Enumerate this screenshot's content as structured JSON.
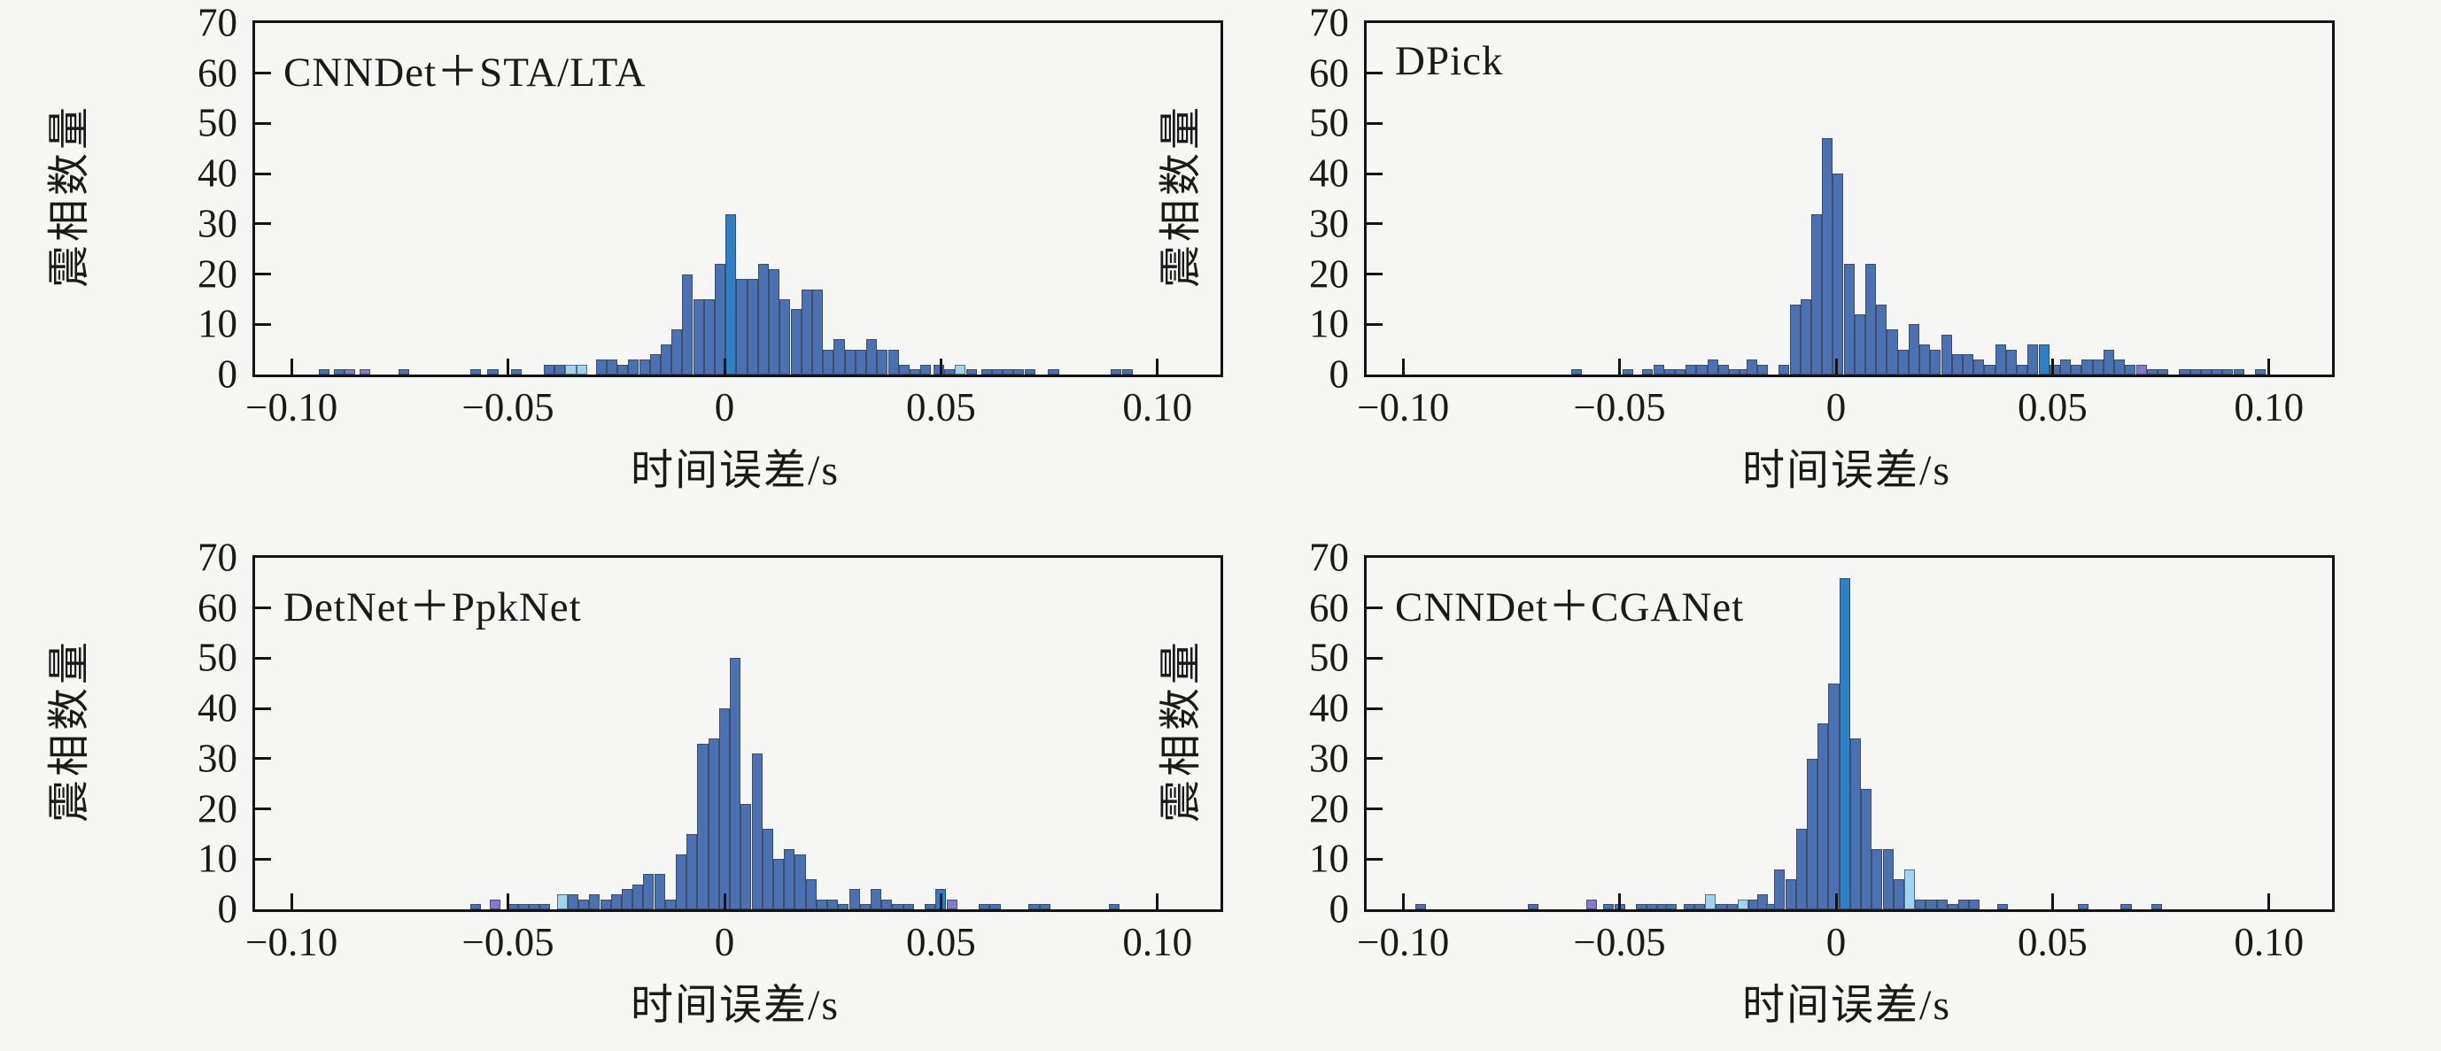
{
  "figure": {
    "background": "#f6f6f4",
    "layout": "2x2 histogram grid",
    "panel_titles": [
      "CNNDet＋STA/LTA",
      "DPick",
      "DetNet＋PpkNet",
      "CNNDet＋CGANet"
    ]
  },
  "style": {
    "bar_color": "#4a72b2",
    "bar_edge_color": "#343842",
    "axis_color": "#141414",
    "text_color": "#1a1a1a",
    "background": "#f6f6f4",
    "palette": {
      "blue": "#4a72b2",
      "bright_blue": "#2f7fc6",
      "light_blue": "#9fd4ee",
      "purple": "#8379cf",
      "green": "#4f9e5f",
      "gray": "#707070"
    }
  },
  "chart_data": [
    {
      "type": "bar",
      "subtype": "histogram",
      "title": "CNNDet＋STA/LTA",
      "xlabel": "时间误差/s",
      "ylabel": "震相数量",
      "xlim": [
        -0.1085,
        0.1145
      ],
      "ylim": [
        0,
        70
      ],
      "xticks": [
        -0.1,
        -0.05,
        0,
        0.05,
        0.1
      ],
      "xtick_labels": [
        "−0.10",
        "−0.05",
        "0",
        "0.05",
        "0.10"
      ],
      "yticks": [
        0,
        10,
        20,
        30,
        40,
        50,
        60,
        70
      ],
      "ytick_labels": [
        "0",
        "10",
        "20",
        "30",
        "40",
        "50",
        "60",
        "70"
      ],
      "grid": false,
      "legend": "none",
      "bin_width": 0.0025,
      "bins": [
        [
          -0.0925,
          1
        ],
        [
          -0.089,
          1
        ],
        [
          -0.0865,
          1,
          "purple"
        ],
        [
          -0.083,
          1,
          "purple"
        ],
        [
          -0.074,
          1
        ],
        [
          -0.0575,
          1
        ],
        [
          -0.0535,
          1
        ],
        [
          -0.048,
          1
        ],
        [
          -0.0405,
          2
        ],
        [
          -0.038,
          2
        ],
        [
          -0.0355,
          2,
          "light_blue"
        ],
        [
          -0.033,
          2,
          "light_blue"
        ],
        [
          -0.0285,
          3
        ],
        [
          -0.026,
          3
        ],
        [
          -0.0235,
          2
        ],
        [
          -0.021,
          3
        ],
        [
          -0.0185,
          3
        ],
        [
          -0.016,
          4
        ],
        [
          -0.0135,
          6
        ],
        [
          -0.011,
          9
        ],
        [
          -0.0085,
          20
        ],
        [
          -0.006,
          15
        ],
        [
          -0.0035,
          15
        ],
        [
          -0.001,
          22
        ],
        [
          0.0015,
          32,
          "bright_blue"
        ],
        [
          0.004,
          19
        ],
        [
          0.0065,
          19
        ],
        [
          0.009,
          22
        ],
        [
          0.0115,
          21
        ],
        [
          0.014,
          15
        ],
        [
          0.0165,
          13
        ],
        [
          0.019,
          17
        ],
        [
          0.0215,
          17
        ],
        [
          0.024,
          5
        ],
        [
          0.0265,
          7
        ],
        [
          0.029,
          5
        ],
        [
          0.0315,
          5
        ],
        [
          0.034,
          7
        ],
        [
          0.0365,
          5
        ],
        [
          0.039,
          5
        ],
        [
          0.0415,
          2
        ],
        [
          0.044,
          1
        ],
        [
          0.0465,
          2
        ],
        [
          0.0495,
          2
        ],
        [
          0.052,
          1
        ],
        [
          0.0545,
          2,
          "light_blue"
        ],
        [
          0.057,
          1
        ],
        [
          0.0605,
          1
        ],
        [
          0.063,
          1
        ],
        [
          0.0655,
          1
        ],
        [
          0.068,
          1
        ],
        [
          0.0705,
          1
        ],
        [
          0.076,
          1
        ],
        [
          0.0905,
          1
        ],
        [
          0.093,
          1
        ]
      ]
    },
    {
      "type": "bar",
      "subtype": "histogram",
      "title": "DPick",
      "xlabel": "时间误差/s",
      "ylabel": "震相数量",
      "xlim": [
        -0.1085,
        0.1145
      ],
      "ylim": [
        0,
        70
      ],
      "xticks": [
        -0.1,
        -0.05,
        0,
        0.05,
        0.1
      ],
      "xtick_labels": [
        "−0.10",
        "−0.05",
        "0",
        "0.05",
        "0.10"
      ],
      "yticks": [
        0,
        10,
        20,
        30,
        40,
        50,
        60,
        70
      ],
      "ytick_labels": [
        "0",
        "10",
        "20",
        "30",
        "40",
        "50",
        "60",
        "70"
      ],
      "grid": false,
      "legend": "none",
      "bin_width": 0.0025,
      "bins": [
        [
          -0.06,
          1
        ],
        [
          -0.048,
          1
        ],
        [
          -0.0435,
          1
        ],
        [
          -0.041,
          2
        ],
        [
          -0.0385,
          1
        ],
        [
          -0.036,
          1
        ],
        [
          -0.0335,
          2
        ],
        [
          -0.031,
          2
        ],
        [
          -0.0285,
          3
        ],
        [
          -0.026,
          2
        ],
        [
          -0.0235,
          1
        ],
        [
          -0.021,
          1
        ],
        [
          -0.0195,
          3
        ],
        [
          -0.017,
          2
        ],
        [
          -0.012,
          2
        ],
        [
          -0.0095,
          14
        ],
        [
          -0.007,
          15
        ],
        [
          -0.0045,
          32
        ],
        [
          -0.002,
          47
        ],
        [
          0.0005,
          40
        ],
        [
          0.003,
          22
        ],
        [
          0.0055,
          12
        ],
        [
          0.008,
          22
        ],
        [
          0.0105,
          14
        ],
        [
          0.013,
          9
        ],
        [
          0.0155,
          5
        ],
        [
          0.018,
          10
        ],
        [
          0.0205,
          6
        ],
        [
          0.023,
          5
        ],
        [
          0.0255,
          8
        ],
        [
          0.028,
          4
        ],
        [
          0.0305,
          4
        ],
        [
          0.033,
          3
        ],
        [
          0.0355,
          2
        ],
        [
          0.038,
          6
        ],
        [
          0.0405,
          5
        ],
        [
          0.043,
          2
        ],
        [
          0.0455,
          6
        ],
        [
          0.048,
          6,
          "bright_blue"
        ],
        [
          0.0505,
          2
        ],
        [
          0.053,
          3
        ],
        [
          0.0555,
          2
        ],
        [
          0.058,
          3
        ],
        [
          0.0605,
          3
        ],
        [
          0.063,
          5
        ],
        [
          0.0655,
          3
        ],
        [
          0.068,
          2
        ],
        [
          0.0705,
          2,
          "purple"
        ],
        [
          0.073,
          1
        ],
        [
          0.0755,
          1
        ],
        [
          0.0805,
          1
        ],
        [
          0.083,
          1
        ],
        [
          0.0855,
          1
        ],
        [
          0.088,
          1
        ],
        [
          0.0905,
          1
        ],
        [
          0.093,
          1
        ],
        [
          0.098,
          1
        ]
      ]
    },
    {
      "type": "bar",
      "subtype": "histogram",
      "title": "DetNet＋PpkNet",
      "xlabel": "时间误差/s",
      "ylabel": "震相数量",
      "xlim": [
        -0.1085,
        0.1145
      ],
      "ylim": [
        0,
        70
      ],
      "xticks": [
        -0.1,
        -0.05,
        0,
        0.05,
        0.1
      ],
      "xtick_labels": [
        "−0.10",
        "−0.05",
        "0",
        "0.05",
        "0.10"
      ],
      "yticks": [
        0,
        10,
        20,
        30,
        40,
        50,
        60,
        70
      ],
      "ytick_labels": [
        "0",
        "10",
        "20",
        "30",
        "40",
        "50",
        "60",
        "70"
      ],
      "grid": false,
      "legend": "none",
      "bin_width": 0.0025,
      "bins": [
        [
          -0.0575,
          1
        ],
        [
          -0.053,
          2,
          "purple"
        ],
        [
          -0.049,
          1
        ],
        [
          -0.0465,
          1
        ],
        [
          -0.044,
          1
        ],
        [
          -0.0415,
          1
        ],
        [
          -0.0375,
          3,
          "light_blue"
        ],
        [
          -0.035,
          3
        ],
        [
          -0.0325,
          2
        ],
        [
          -0.03,
          3
        ],
        [
          -0.0275,
          2
        ],
        [
          -0.025,
          3
        ],
        [
          -0.0225,
          4
        ],
        [
          -0.02,
          5
        ],
        [
          -0.0175,
          7
        ],
        [
          -0.015,
          7
        ],
        [
          -0.0125,
          2
        ],
        [
          -0.01,
          11
        ],
        [
          -0.0075,
          15
        ],
        [
          -0.005,
          33
        ],
        [
          -0.0025,
          34
        ],
        [
          0.0,
          40
        ],
        [
          0.0025,
          50
        ],
        [
          0.005,
          21
        ],
        [
          0.0075,
          31
        ],
        [
          0.01,
          16
        ],
        [
          0.0125,
          10
        ],
        [
          0.015,
          12
        ],
        [
          0.0175,
          11
        ],
        [
          0.02,
          6
        ],
        [
          0.0225,
          2
        ],
        [
          0.025,
          2
        ],
        [
          0.0275,
          1
        ],
        [
          0.03,
          4
        ],
        [
          0.0325,
          1
        ],
        [
          0.035,
          4
        ],
        [
          0.0375,
          2
        ],
        [
          0.04,
          1
        ],
        [
          0.0425,
          1
        ],
        [
          0.0475,
          1
        ],
        [
          0.05,
          4,
          "bright_blue"
        ],
        [
          0.0525,
          2,
          "purple"
        ],
        [
          0.06,
          1
        ],
        [
          0.0625,
          1
        ],
        [
          0.0715,
          1
        ],
        [
          0.074,
          1
        ],
        [
          0.09,
          1
        ]
      ]
    },
    {
      "type": "bar",
      "subtype": "histogram",
      "title": "CNNDet＋CGANet",
      "xlabel": "时间误差/s",
      "ylabel": "震相数量",
      "xlim": [
        -0.1085,
        0.1145
      ],
      "ylim": [
        0,
        70
      ],
      "xticks": [
        -0.1,
        -0.05,
        0,
        0.05,
        0.1
      ],
      "xtick_labels": [
        "−0.10",
        "−0.05",
        "0",
        "0.05",
        "0.10"
      ],
      "yticks": [
        0,
        10,
        20,
        30,
        40,
        50,
        60,
        70
      ],
      "ytick_labels": [
        "0",
        "10",
        "20",
        "30",
        "40",
        "50",
        "60",
        "70"
      ],
      "grid": false,
      "legend": "none",
      "bin_width": 0.0025,
      "bins": [
        [
          -0.096,
          1
        ],
        [
          -0.07,
          1
        ],
        [
          -0.0565,
          2,
          "purple"
        ],
        [
          -0.0525,
          1
        ],
        [
          -0.05,
          1
        ],
        [
          -0.045,
          1
        ],
        [
          -0.0425,
          1
        ],
        [
          -0.04,
          1
        ],
        [
          -0.038,
          1
        ],
        [
          -0.034,
          1
        ],
        [
          -0.0315,
          1
        ],
        [
          -0.029,
          3,
          "light_blue"
        ],
        [
          -0.0265,
          1
        ],
        [
          -0.024,
          1
        ],
        [
          -0.0215,
          2,
          "light_blue"
        ],
        [
          -0.019,
          2
        ],
        [
          -0.017,
          3
        ],
        [
          -0.015,
          1
        ],
        [
          -0.013,
          8
        ],
        [
          -0.0105,
          6
        ],
        [
          -0.008,
          16
        ],
        [
          -0.0055,
          30
        ],
        [
          -0.003,
          37
        ],
        [
          -0.0005,
          45
        ],
        [
          0.002,
          66,
          "bright_blue"
        ],
        [
          0.0045,
          34
        ],
        [
          0.007,
          24
        ],
        [
          0.0095,
          12
        ],
        [
          0.012,
          12
        ],
        [
          0.0145,
          6
        ],
        [
          0.017,
          8,
          "light_blue"
        ],
        [
          0.0195,
          2
        ],
        [
          0.022,
          2
        ],
        [
          0.0245,
          2
        ],
        [
          0.027,
          1
        ],
        [
          0.0295,
          2
        ],
        [
          0.032,
          2
        ],
        [
          0.0385,
          1
        ],
        [
          0.057,
          1
        ],
        [
          0.067,
          1
        ],
        [
          0.074,
          1
        ]
      ]
    }
  ]
}
